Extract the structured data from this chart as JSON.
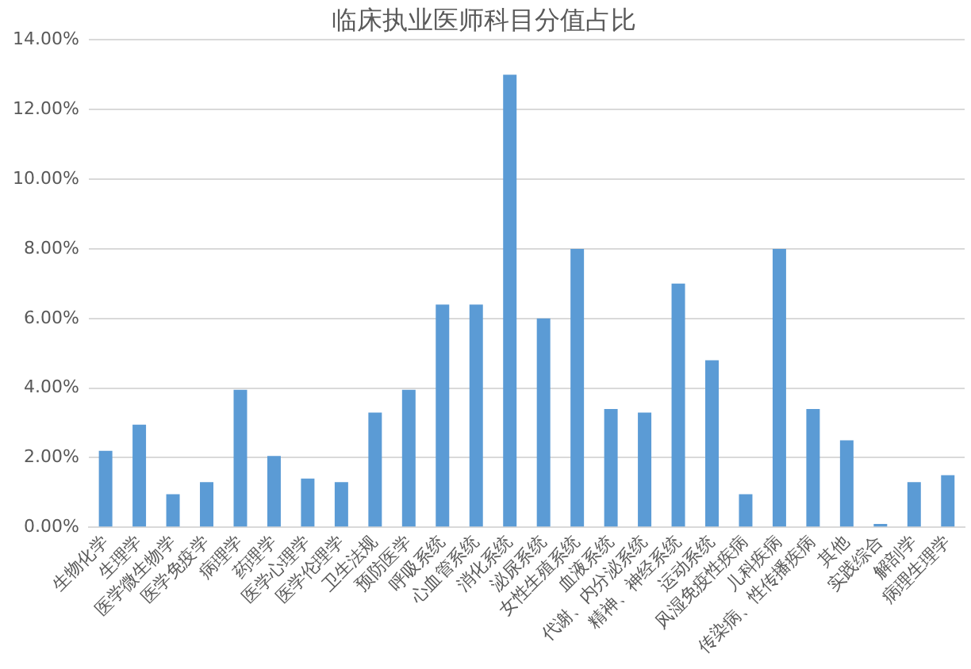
{
  "chart_data": {
    "type": "bar",
    "title": "临床执业医师科目分值占比",
    "categories": [
      "生物化学",
      "生理学",
      "医学微生物学",
      "医学免疫学",
      "病理学",
      "药理学",
      "医学心理学",
      "医学伦理学",
      "卫生法规",
      "预防医学",
      "呼吸系统",
      "心血管系统",
      "消化系统",
      "泌尿系统",
      "女性生殖系统",
      "血液系统",
      "代谢、内分泌系统",
      "精神、神经系统",
      "运动系统",
      "风湿免疫性疾病",
      "儿科疾病",
      "传染病、性传播疾病",
      "其他",
      "实践综合",
      "解剖学",
      "病理生理学"
    ],
    "values": [
      2.2,
      2.95,
      0.95,
      1.3,
      3.95,
      2.05,
      1.4,
      1.3,
      3.3,
      3.95,
      6.4,
      6.4,
      13.0,
      6.0,
      8.0,
      3.4,
      3.3,
      7.0,
      4.8,
      0.95,
      8.0,
      3.4,
      2.5,
      0.1,
      1.3,
      1.5
    ],
    "color": "#5b9bd5",
    "ylim": [
      0,
      14
    ],
    "yticks": [
      {
        "value": 0,
        "label": "0.00%"
      },
      {
        "value": 2,
        "label": "2.00%"
      },
      {
        "value": 4,
        "label": "4.00%"
      },
      {
        "value": 6,
        "label": "6.00%"
      },
      {
        "value": 8,
        "label": "8.00%"
      },
      {
        "value": 10,
        "label": "10.00%"
      },
      {
        "value": 12,
        "label": "12.00%"
      },
      {
        "value": 14,
        "label": "14.00%"
      }
    ],
    "grid": "y",
    "legend": false
  }
}
